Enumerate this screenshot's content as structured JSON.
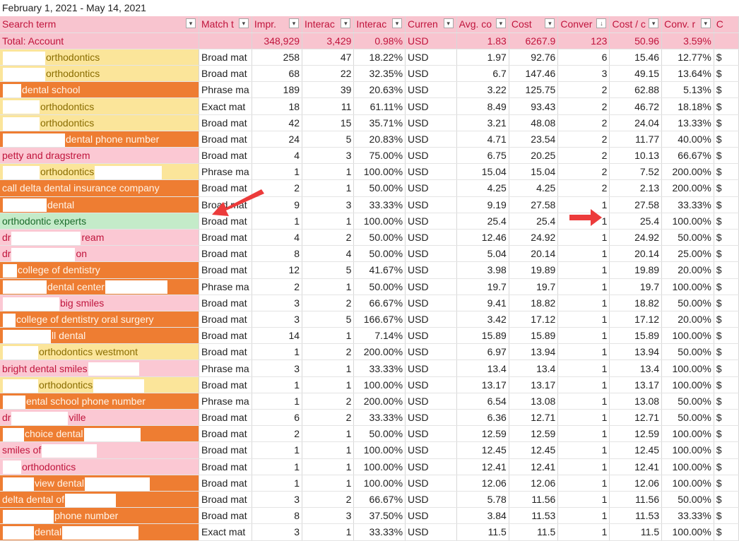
{
  "date_range": "February 1, 2021 - May 14, 2021",
  "headers": [
    "Search term",
    "Match t",
    "Impr.",
    "Interac",
    "Interac",
    "Curren",
    "Avg. co",
    "Cost",
    "Conver",
    "Cost / c",
    "Conv. r",
    "C"
  ],
  "sort_glyph": "▾",
  "sort_desc_glyph": "↓",
  "total": [
    "Total: Account",
    "",
    "348,929",
    "3,429",
    "0.98%",
    "USD",
    "1.83",
    "6267.9",
    "123",
    "50.96",
    "3.59%",
    ""
  ],
  "rows": [
    {
      "bg": "yellow",
      "pre": 60,
      "term": "orthodontics",
      "match": "Broad mat",
      "impr": "258",
      "inter": "47",
      "rate": "18.22%",
      "cur": "USD",
      "avg": "1.97",
      "cost": "92.76",
      "conv": "6",
      "cpc": "15.46",
      "cr": "12.77%",
      "c": "$"
    },
    {
      "bg": "yellow",
      "pre": 60,
      "term": "orthodontics",
      "match": "Broad mat",
      "impr": "68",
      "inter": "22",
      "rate": "32.35%",
      "cur": "USD",
      "avg": "6.7",
      "cost": "147.46",
      "conv": "3",
      "cpc": "49.15",
      "cr": "13.64%",
      "c": "$"
    },
    {
      "bg": "orange",
      "pre": 26,
      "term": "dental school",
      "match": "Phrase ma",
      "impr": "189",
      "inter": "39",
      "rate": "20.63%",
      "cur": "USD",
      "avg": "3.22",
      "cost": "125.75",
      "conv": "2",
      "cpc": "62.88",
      "cr": "5.13%",
      "c": "$"
    },
    {
      "bg": "yellow",
      "pre": 52,
      "term": "orthodontics",
      "match": "Exact mat",
      "impr": "18",
      "inter": "11",
      "rate": "61.11%",
      "cur": "USD",
      "avg": "8.49",
      "cost": "93.43",
      "conv": "2",
      "cpc": "46.72",
      "cr": "18.18%",
      "c": "$"
    },
    {
      "bg": "yellow",
      "pre": 52,
      "term": "orthodontics",
      "match": "Broad mat",
      "impr": "42",
      "inter": "15",
      "rate": "35.71%",
      "cur": "USD",
      "avg": "3.21",
      "cost": "48.08",
      "conv": "2",
      "cpc": "24.04",
      "cr": "13.33%",
      "c": "$"
    },
    {
      "bg": "orange",
      "pre": 88,
      "term": "dental phone number",
      "match": "Broad mat",
      "impr": "24",
      "inter": "5",
      "rate": "20.83%",
      "cur": "USD",
      "avg": "4.71",
      "cost": "23.54",
      "conv": "2",
      "cpc": "11.77",
      "cr": "40.00%",
      "c": "$"
    },
    {
      "bg": "pink",
      "pre": 0,
      "term": "petty and dragstrem",
      "match": "Broad mat",
      "impr": "4",
      "inter": "3",
      "rate": "75.00%",
      "cur": "USD",
      "avg": "6.75",
      "cost": "20.25",
      "conv": "2",
      "cpc": "10.13",
      "cr": "66.67%",
      "c": "$"
    },
    {
      "bg": "yellow",
      "pre": 52,
      "term": "orthodontics",
      "post": 95,
      "match": "Phrase ma",
      "impr": "1",
      "inter": "1",
      "rate": "100.00%",
      "cur": "USD",
      "avg": "15.04",
      "cost": "15.04",
      "conv": "2",
      "cpc": "7.52",
      "cr": "200.00%",
      "c": "$"
    },
    {
      "bg": "orange",
      "pre": 0,
      "term": "call delta dental insurance company",
      "match": "Broad mat",
      "impr": "2",
      "inter": "1",
      "rate": "50.00%",
      "cur": "USD",
      "avg": "4.25",
      "cost": "4.25",
      "conv": "2",
      "cpc": "2.13",
      "cr": "200.00%",
      "c": "$"
    },
    {
      "bg": "orange",
      "pre": 62,
      "term": "dental",
      "match": "Broad mat",
      "impr": "9",
      "inter": "3",
      "rate": "33.33%",
      "cur": "USD",
      "avg": "9.19",
      "cost": "27.58",
      "conv": "1",
      "cpc": "27.58",
      "cr": "33.33%",
      "c": "$"
    },
    {
      "bg": "green",
      "pre": 0,
      "term": "orthodontic experts",
      "match": "Broad mat",
      "impr": "1",
      "inter": "1",
      "rate": "100.00%",
      "cur": "USD",
      "avg": "25.4",
      "cost": "25.4",
      "conv": "1",
      "cpc": "25.4",
      "cr": "100.00%",
      "c": "$"
    },
    {
      "bg": "pink",
      "pre": 0,
      "term": "dr",
      "gap": 98,
      "tail": "ream",
      "match": "Broad mat",
      "impr": "4",
      "inter": "2",
      "rate": "50.00%",
      "cur": "USD",
      "avg": "12.46",
      "cost": "24.92",
      "conv": "1",
      "cpc": "24.92",
      "cr": "50.00%",
      "c": "$"
    },
    {
      "bg": "pink",
      "pre": 0,
      "term": "dr",
      "gap": 90,
      "tail": "on",
      "match": "Broad mat",
      "impr": "8",
      "inter": "4",
      "rate": "50.00%",
      "cur": "USD",
      "avg": "5.04",
      "cost": "20.14",
      "conv": "1",
      "cpc": "20.14",
      "cr": "25.00%",
      "c": "$"
    },
    {
      "bg": "orange",
      "pre": 20,
      "term": "college of dentistry",
      "match": "Broad mat",
      "impr": "12",
      "inter": "5",
      "rate": "41.67%",
      "cur": "USD",
      "avg": "3.98",
      "cost": "19.89",
      "conv": "1",
      "cpc": "19.89",
      "cr": "20.00%",
      "c": "$"
    },
    {
      "bg": "orange",
      "pre": 62,
      "term": "dental center",
      "post": 88,
      "match": "Phrase ma",
      "impr": "2",
      "inter": "1",
      "rate": "50.00%",
      "cur": "USD",
      "avg": "19.7",
      "cost": "19.7",
      "conv": "1",
      "cpc": "19.7",
      "cr": "100.00%",
      "c": "$"
    },
    {
      "bg": "pink",
      "pre": 80,
      "term": "big smiles",
      "match": "Broad mat",
      "impr": "3",
      "inter": "2",
      "rate": "66.67%",
      "cur": "USD",
      "avg": "9.41",
      "cost": "18.82",
      "conv": "1",
      "cpc": "18.82",
      "cr": "50.00%",
      "c": "$"
    },
    {
      "bg": "orange",
      "pre": 18,
      "term": "college of dentistry oral surgery",
      "match": "Broad mat",
      "impr": "3",
      "inter": "5",
      "rate": "166.67%",
      "cur": "USD",
      "avg": "3.42",
      "cost": "17.12",
      "conv": "1",
      "cpc": "17.12",
      "cr": "20.00%",
      "c": "$"
    },
    {
      "bg": "orange",
      "pre": 68,
      "term": "ll dental",
      "match": "Broad mat",
      "impr": "14",
      "inter": "1",
      "rate": "7.14%",
      "cur": "USD",
      "avg": "15.89",
      "cost": "15.89",
      "conv": "1",
      "cpc": "15.89",
      "cr": "100.00%",
      "c": "$"
    },
    {
      "bg": "yellow",
      "pre": 50,
      "term": "orthodontics westmont",
      "match": "Broad mat",
      "impr": "1",
      "inter": "2",
      "rate": "200.00%",
      "cur": "USD",
      "avg": "6.97",
      "cost": "13.94",
      "conv": "1",
      "cpc": "13.94",
      "cr": "50.00%",
      "c": "$"
    },
    {
      "bg": "pink",
      "pre": 0,
      "term": "bright dental smiles",
      "post": 72,
      "match": "Phrase ma",
      "impr": "3",
      "inter": "1",
      "rate": "33.33%",
      "cur": "USD",
      "avg": "13.4",
      "cost": "13.4",
      "conv": "1",
      "cpc": "13.4",
      "cr": "100.00%",
      "c": "$"
    },
    {
      "bg": "yellow",
      "pre": 50,
      "term": "orthodontics",
      "post": 72,
      "match": "Broad mat",
      "impr": "1",
      "inter": "1",
      "rate": "100.00%",
      "cur": "USD",
      "avg": "13.17",
      "cost": "13.17",
      "conv": "1",
      "cpc": "13.17",
      "cr": "100.00%",
      "c": "$"
    },
    {
      "bg": "orange",
      "pre": 32,
      "term": "ental school phone number",
      "match": "Phrase ma",
      "impr": "1",
      "inter": "2",
      "rate": "200.00%",
      "cur": "USD",
      "avg": "6.54",
      "cost": "13.08",
      "conv": "1",
      "cpc": "13.08",
      "cr": "50.00%",
      "c": "$"
    },
    {
      "bg": "pink",
      "pre": 0,
      "term": "dr",
      "gap": 80,
      "tail": "ville",
      "match": "Broad mat",
      "impr": "6",
      "inter": "2",
      "rate": "33.33%",
      "cur": "USD",
      "avg": "6.36",
      "cost": "12.71",
      "conv": "1",
      "cpc": "12.71",
      "cr": "50.00%",
      "c": "$"
    },
    {
      "bg": "orange",
      "pre": 30,
      "term": "choice dental",
      "post": 80,
      "match": "Broad mat",
      "impr": "2",
      "inter": "1",
      "rate": "50.00%",
      "cur": "USD",
      "avg": "12.59",
      "cost": "12.59",
      "conv": "1",
      "cpc": "12.59",
      "cr": "100.00%",
      "c": "$"
    },
    {
      "bg": "pink",
      "pre": 0,
      "term": "smiles of",
      "post": 78,
      "match": "Broad mat",
      "impr": "1",
      "inter": "1",
      "rate": "100.00%",
      "cur": "USD",
      "avg": "12.45",
      "cost": "12.45",
      "conv": "1",
      "cpc": "12.45",
      "cr": "100.00%",
      "c": "$"
    },
    {
      "bg": "pink",
      "pre": 26,
      "term": "orthodontics",
      "match": "Broad mat",
      "impr": "1",
      "inter": "1",
      "rate": "100.00%",
      "cur": "USD",
      "avg": "12.41",
      "cost": "12.41",
      "conv": "1",
      "cpc": "12.41",
      "cr": "100.00%",
      "c": "$"
    },
    {
      "bg": "orange",
      "pre": 44,
      "term": "view dental",
      "post": 92,
      "match": "Broad mat",
      "impr": "1",
      "inter": "1",
      "rate": "100.00%",
      "cur": "USD",
      "avg": "12.06",
      "cost": "12.06",
      "conv": "1",
      "cpc": "12.06",
      "cr": "100.00%",
      "c": "$"
    },
    {
      "bg": "orange",
      "pre": 0,
      "term": "delta dental of",
      "post": 72,
      "match": "Broad mat",
      "impr": "3",
      "inter": "2",
      "rate": "66.67%",
      "cur": "USD",
      "avg": "5.78",
      "cost": "11.56",
      "conv": "1",
      "cpc": "11.56",
      "cr": "50.00%",
      "c": "$"
    },
    {
      "bg": "orange",
      "pre": 72,
      "term": "phone number",
      "match": "Broad mat",
      "impr": "8",
      "inter": "3",
      "rate": "37.50%",
      "cur": "USD",
      "avg": "3.84",
      "cost": "11.53",
      "conv": "1",
      "cpc": "11.53",
      "cr": "33.33%",
      "c": "$"
    },
    {
      "bg": "orange",
      "pre": 44,
      "term": "dental",
      "post": 108,
      "match": "Exact mat",
      "impr": "3",
      "inter": "1",
      "rate": "33.33%",
      "cur": "USD",
      "avg": "11.5",
      "cost": "11.5",
      "conv": "1",
      "cpc": "11.5",
      "cr": "100.00%",
      "c": "$"
    }
  ],
  "colors": {
    "header_bg": "#f8c4cf",
    "header_text": "#c0143c",
    "yellow": "#fbe59a",
    "orange": "#ee7d32",
    "pink": "#fbc8d3",
    "green": "#c4ebc9",
    "arrow": "#ec3b3b"
  }
}
